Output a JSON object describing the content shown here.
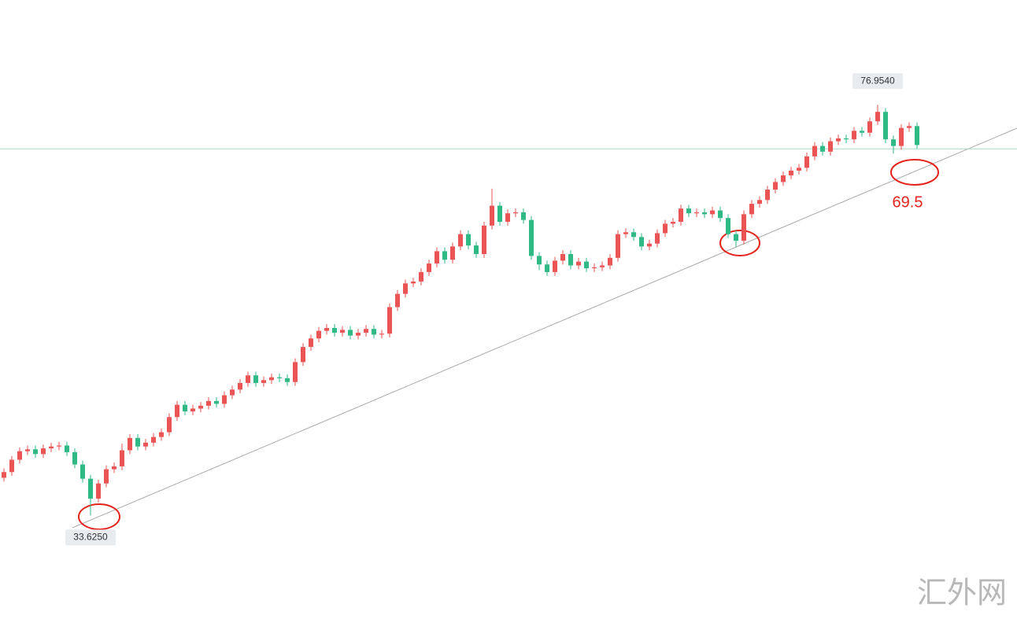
{
  "chart_data": {
    "type": "candlestick",
    "ylim": [
      22.7,
      88.0
    ],
    "open": [
      37.6,
      38.2,
      39.5,
      40.4,
      40.6,
      40.1,
      40.7,
      40.9,
      41.0,
      40.3,
      39.0,
      37.5,
      35.4,
      37.0,
      38.5,
      38.8,
      40.5,
      41.8,
      40.9,
      41.3,
      41.9,
      42.4,
      44.0,
      45.3,
      44.6,
      44.9,
      45.2,
      45.7,
      45.4,
      46.3,
      46.9,
      47.6,
      48.4,
      47.6,
      47.9,
      48.2,
      48.1,
      47.7,
      49.8,
      51.4,
      52.3,
      53.1,
      53.4,
      52.9,
      53.2,
      52.6,
      52.9,
      53.3,
      52.7,
      52.8,
      55.6,
      57.0,
      58.1,
      58.3,
      59.3,
      60.2,
      61.5,
      60.6,
      62.0,
      63.3,
      62.1,
      61.2,
      64.2,
      66.3,
      64.6,
      65.5,
      65.6,
      64.8,
      61.0,
      60.1,
      59.3,
      60.5,
      61.2,
      60.0,
      60.4,
      59.7,
      59.8,
      60.0,
      60.8,
      63.3,
      63.5,
      63.0,
      62.0,
      62.3,
      63.4,
      64.4,
      64.6,
      66.0,
      65.5,
      65.6,
      65.4,
      65.8,
      65.0,
      63.3,
      62.6,
      65.4,
      66.5,
      66.9,
      68.0,
      68.8,
      69.5,
      70.0,
      70.3,
      71.5,
      72.6,
      72.0,
      73.1,
      73.4,
      73.3,
      74.2,
      74.0,
      75.2,
      76.2,
      73.3,
      72.6,
      74.5,
      74.7
    ],
    "high": [
      38.6,
      39.9,
      40.8,
      41.0,
      41.0,
      41.1,
      41.3,
      41.4,
      41.4,
      40.7,
      39.4,
      37.9,
      37.4,
      38.9,
      39.2,
      41.2,
      42.2,
      42.2,
      41.7,
      42.3,
      42.8,
      44.4,
      45.7,
      45.7,
      45.3,
      45.6,
      46.1,
      46.1,
      46.7,
      47.3,
      48.0,
      48.8,
      48.8,
      48.3,
      48.6,
      48.6,
      48.5,
      50.2,
      51.8,
      52.7,
      53.5,
      53.8,
      53.8,
      53.6,
      53.6,
      53.3,
      53.7,
      53.7,
      53.2,
      56.0,
      57.4,
      58.5,
      58.7,
      59.7,
      60.6,
      61.9,
      61.9,
      62.4,
      63.7,
      63.7,
      62.5,
      64.6,
      68.1,
      66.7,
      65.9,
      66.0,
      66.0,
      65.2,
      61.4,
      60.5,
      60.9,
      61.6,
      61.6,
      60.8,
      60.8,
      60.2,
      60.4,
      61.2,
      63.7,
      63.9,
      63.9,
      63.4,
      62.7,
      63.8,
      64.8,
      65.0,
      66.4,
      66.4,
      66.0,
      66.0,
      66.2,
      66.2,
      65.4,
      63.7,
      65.8,
      66.9,
      67.3,
      68.4,
      69.2,
      69.9,
      70.4,
      70.7,
      71.9,
      73.0,
      73.0,
      73.5,
      73.8,
      73.8,
      74.6,
      74.6,
      75.6,
      76.954,
      76.6,
      73.7,
      74.9,
      75.1,
      75.1
    ],
    "low": [
      37.2,
      37.8,
      39.1,
      40.0,
      39.7,
      39.7,
      40.3,
      40.5,
      39.9,
      38.6,
      37.1,
      33.625,
      35.0,
      36.6,
      38.1,
      38.4,
      40.1,
      40.5,
      40.5,
      40.9,
      41.5,
      42.0,
      43.6,
      44.2,
      44.2,
      44.5,
      44.8,
      45.0,
      45.0,
      45.9,
      46.5,
      47.2,
      47.2,
      47.2,
      47.5,
      47.7,
      47.3,
      47.3,
      49.4,
      51.0,
      51.9,
      52.7,
      52.5,
      52.5,
      52.2,
      52.2,
      52.5,
      52.3,
      52.3,
      52.4,
      55.2,
      56.6,
      57.7,
      57.9,
      58.9,
      59.8,
      60.2,
      60.2,
      61.6,
      61.7,
      60.8,
      60.8,
      63.8,
      64.2,
      64.2,
      65.1,
      64.4,
      60.6,
      59.5,
      58.9,
      58.9,
      60.1,
      59.6,
      59.6,
      59.3,
      59.3,
      59.4,
      59.6,
      60.4,
      62.9,
      62.6,
      61.6,
      61.6,
      61.9,
      63.0,
      64.0,
      64.2,
      65.1,
      65.1,
      65.0,
      65.0,
      64.6,
      62.9,
      61.9,
      62.2,
      65.0,
      66.1,
      66.5,
      67.6,
      68.4,
      69.1,
      69.6,
      69.9,
      71.1,
      71.6,
      71.6,
      72.7,
      72.9,
      72.9,
      73.6,
      73.6,
      74.8,
      72.9,
      71.8,
      72.2,
      74.1,
      72.3
    ],
    "close": [
      38.2,
      39.5,
      40.4,
      40.6,
      40.1,
      40.7,
      40.9,
      41.0,
      40.3,
      39.0,
      37.5,
      35.4,
      37.0,
      38.5,
      38.8,
      40.5,
      41.8,
      40.9,
      41.3,
      41.9,
      42.4,
      44.0,
      45.3,
      44.6,
      44.9,
      45.2,
      45.7,
      45.4,
      46.3,
      46.9,
      47.6,
      48.4,
      47.6,
      47.9,
      48.2,
      48.1,
      47.7,
      49.8,
      51.4,
      52.3,
      53.1,
      53.4,
      52.9,
      53.2,
      52.6,
      52.9,
      53.3,
      52.7,
      52.8,
      55.6,
      57.0,
      58.1,
      58.3,
      59.3,
      60.2,
      61.5,
      60.6,
      62.0,
      63.3,
      62.1,
      61.2,
      64.2,
      66.3,
      64.6,
      65.5,
      65.6,
      64.8,
      61.0,
      60.1,
      59.3,
      60.5,
      61.2,
      60.0,
      60.4,
      59.7,
      59.8,
      60.0,
      60.8,
      63.3,
      63.5,
      63.0,
      62.0,
      62.3,
      63.4,
      64.4,
      64.6,
      66.0,
      65.5,
      65.6,
      65.4,
      65.8,
      65.0,
      63.3,
      62.6,
      65.4,
      66.5,
      66.9,
      68.0,
      68.8,
      69.5,
      70.0,
      70.3,
      71.5,
      72.6,
      72.0,
      73.1,
      73.4,
      73.3,
      74.2,
      74.0,
      75.2,
      76.2,
      73.3,
      72.6,
      74.5,
      74.7,
      72.7
    ],
    "up_color": "#eb5454",
    "down_color": "#2fb984",
    "price_line": 72.3,
    "price_line_color": "#a8dcc0",
    "extreme_labels": [
      {
        "value": 33.625,
        "label": "33.6250"
      },
      {
        "value": 76.954,
        "label": "76.9540"
      }
    ],
    "annotation": 69.5,
    "annotation_color": "#e4241c"
  },
  "watermark": "汇外网"
}
